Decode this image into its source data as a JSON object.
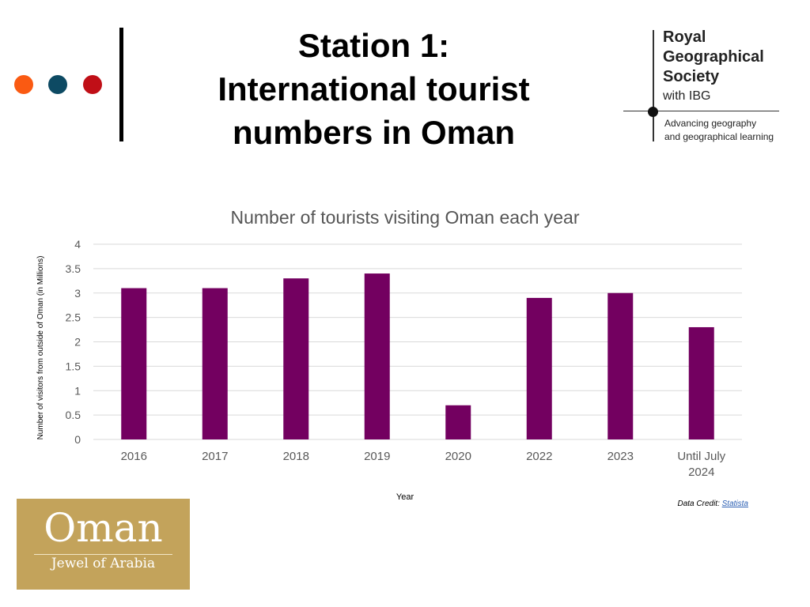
{
  "header": {
    "title_line1": "Station 1:",
    "title_line2": "International tourist",
    "title_line3": "numbers in Oman",
    "dot_colors": [
      "#fa5a12",
      "#0d4a63",
      "#c00f17"
    ]
  },
  "rgs_logo": {
    "line1": "Royal",
    "line2": "Geographical",
    "line3": "Society",
    "with": "with IBG",
    "sub1": "Advancing geography",
    "sub2": "and geographical learning"
  },
  "chart_data": {
    "type": "bar",
    "title": "Number of tourists visiting Oman each year",
    "xlabel": "Year",
    "ylabel": "Number of visitors from outside of Oman (in Millions)",
    "categories": [
      "2016",
      "2017",
      "2018",
      "2019",
      "2020",
      "2022",
      "2023",
      "Until July 2024"
    ],
    "values": [
      3.1,
      3.1,
      3.3,
      3.4,
      0.7,
      2.9,
      3.0,
      2.3
    ],
    "ylim": [
      0,
      4
    ],
    "yticks": [
      "0",
      "0.5",
      "1",
      "1.5",
      "2",
      "2.5",
      "3",
      "3.5",
      "4"
    ],
    "grid": true,
    "bar_color": "#730060"
  },
  "credit": {
    "label": "Data Credit: ",
    "link": "Statista"
  },
  "oman_logo": {
    "word": "Oman",
    "tagline": "Jewel of Arabia"
  }
}
